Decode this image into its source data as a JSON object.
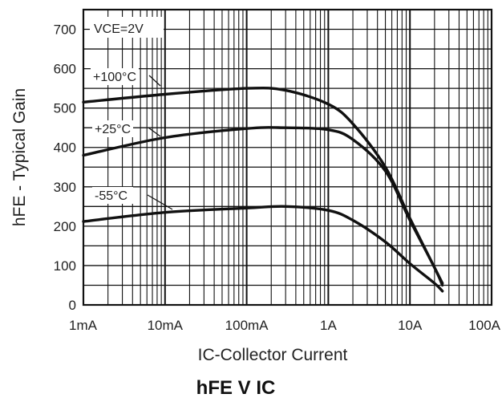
{
  "chart_data": {
    "type": "line",
    "title": "hFE V IC",
    "xlabel": "IC-Collector Current",
    "ylabel": "hFE - Typical Gain",
    "annotation": "VCE=2V",
    "x_scale": "log",
    "xlim": [
      "1mA",
      "100A"
    ],
    "ylim": [
      0,
      750
    ],
    "x_tick_labels": [
      "1mA",
      "10mA",
      "100mA",
      "1A",
      "10A",
      "100A"
    ],
    "y_tick_labels": [
      "0",
      "100",
      "200",
      "300",
      "400",
      "500",
      "600",
      "700"
    ],
    "grid": true,
    "series": [
      {
        "name": "+100°C",
        "x": [
          "1mA",
          "10mA",
          "100mA",
          "300mA",
          "1A",
          "2A",
          "5A",
          "10A",
          "20A",
          "25A"
        ],
        "values": [
          515,
          535,
          550,
          545,
          510,
          460,
          350,
          220,
          95,
          55
        ]
      },
      {
        "name": "+25°C",
        "x": [
          "1mA",
          "10mA",
          "100mA",
          "300mA",
          "1A",
          "2A",
          "5A",
          "10A",
          "20A",
          "25A"
        ],
        "values": [
          380,
          425,
          448,
          450,
          445,
          420,
          340,
          215,
          95,
          50
        ]
      },
      {
        "name": "-55°C",
        "x": [
          "1mA",
          "10mA",
          "100mA",
          "300mA",
          "1A",
          "2A",
          "5A",
          "10A",
          "20A",
          "25A"
        ],
        "values": [
          212,
          235,
          246,
          250,
          240,
          215,
          160,
          105,
          55,
          35
        ]
      }
    ]
  }
}
